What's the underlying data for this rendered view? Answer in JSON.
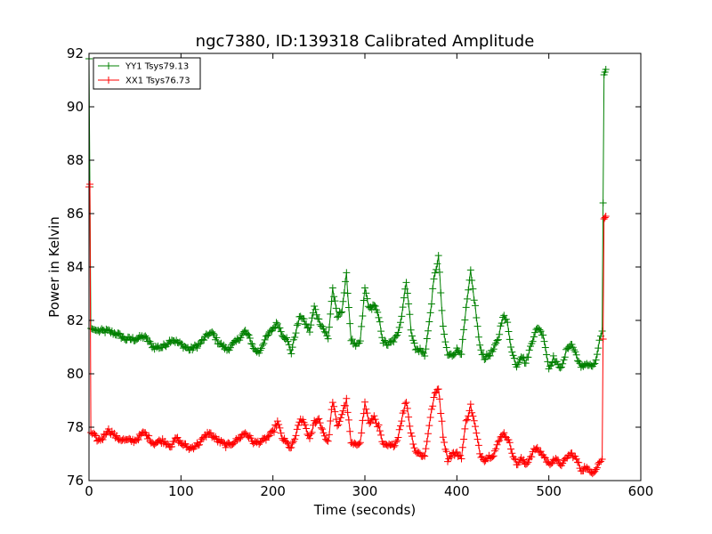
{
  "chart_data": {
    "type": "line",
    "title": "ngc7380, ID:139318 Calibrated Amplitude",
    "xlabel": "Time (seconds)",
    "ylabel": "Power in Kelvin",
    "xlim": [
      0,
      600
    ],
    "ylim": [
      76,
      92
    ],
    "xticks": [
      0,
      100,
      200,
      300,
      400,
      500,
      600
    ],
    "yticks": [
      76,
      78,
      80,
      82,
      84,
      86,
      88,
      90,
      92
    ],
    "legend_position": "upper-left",
    "series": [
      {
        "name": "YY1 Tsys79.13",
        "color": "#008000",
        "marker": "+",
        "baseline": [
          [
            0,
            91.8
          ],
          [
            1,
            87.0
          ],
          [
            2,
            81.7
          ],
          [
            10,
            81.6
          ],
          [
            20,
            81.6
          ],
          [
            30,
            81.5
          ],
          [
            40,
            81.3
          ],
          [
            50,
            81.3
          ],
          [
            60,
            81.4
          ],
          [
            70,
            81.0
          ],
          [
            80,
            81.0
          ],
          [
            90,
            81.3
          ],
          [
            100,
            81.1
          ],
          [
            110,
            80.9
          ],
          [
            120,
            81.1
          ],
          [
            130,
            81.5
          ],
          [
            135,
            81.5
          ],
          [
            140,
            81.2
          ],
          [
            150,
            80.9
          ],
          [
            160,
            81.2
          ],
          [
            170,
            81.6
          ],
          [
            175,
            81.3
          ],
          [
            180,
            80.9
          ],
          [
            185,
            80.8
          ],
          [
            190,
            81.2
          ],
          [
            200,
            81.7
          ],
          [
            205,
            81.9
          ],
          [
            210,
            81.5
          ],
          [
            215,
            81.3
          ],
          [
            220,
            80.8
          ],
          [
            225,
            81.6
          ],
          [
            230,
            82.2
          ],
          [
            235,
            81.9
          ],
          [
            240,
            81.6
          ],
          [
            245,
            82.5
          ],
          [
            250,
            82.0
          ],
          [
            255,
            81.7
          ],
          [
            260,
            81.3
          ],
          [
            265,
            83.2
          ],
          [
            270,
            82.1
          ],
          [
            275,
            82.4
          ],
          [
            280,
            83.7
          ],
          [
            285,
            81.3
          ],
          [
            290,
            81.0
          ],
          [
            295,
            81.2
          ],
          [
            300,
            83.2
          ],
          [
            305,
            82.4
          ],
          [
            310,
            82.6
          ],
          [
            315,
            82.1
          ],
          [
            320,
            81.2
          ],
          [
            325,
            81.1
          ],
          [
            330,
            81.2
          ],
          [
            335,
            81.4
          ],
          [
            340,
            82.2
          ],
          [
            345,
            83.5
          ],
          [
            350,
            81.7
          ],
          [
            355,
            80.9
          ],
          [
            360,
            80.9
          ],
          [
            365,
            80.7
          ],
          [
            370,
            81.9
          ],
          [
            375,
            83.5
          ],
          [
            380,
            84.4
          ],
          [
            385,
            81.7
          ],
          [
            390,
            80.7
          ],
          [
            395,
            80.7
          ],
          [
            400,
            80.9
          ],
          [
            405,
            80.8
          ],
          [
            410,
            82.4
          ],
          [
            415,
            83.8
          ],
          [
            420,
            82.5
          ],
          [
            425,
            81.0
          ],
          [
            430,
            80.6
          ],
          [
            435,
            80.7
          ],
          [
            440,
            80.9
          ],
          [
            445,
            81.3
          ],
          [
            450,
            82.2
          ],
          [
            455,
            81.9
          ],
          [
            460,
            80.8
          ],
          [
            465,
            80.3
          ],
          [
            470,
            80.7
          ],
          [
            475,
            80.4
          ],
          [
            480,
            81.0
          ],
          [
            485,
            81.6
          ],
          [
            490,
            81.7
          ],
          [
            495,
            81.3
          ],
          [
            500,
            80.2
          ],
          [
            505,
            80.6
          ],
          [
            510,
            80.3
          ],
          [
            515,
            80.3
          ],
          [
            520,
            81.0
          ],
          [
            525,
            81.1
          ],
          [
            530,
            80.7
          ],
          [
            535,
            80.2
          ],
          [
            540,
            80.4
          ],
          [
            545,
            80.3
          ],
          [
            550,
            80.3
          ],
          [
            555,
            81.2
          ],
          [
            558,
            81.6
          ],
          [
            560,
            91.2
          ],
          [
            562,
            91.4
          ]
        ],
        "tsys_shown": "79.13"
      },
      {
        "name": "XX1 Tsys76.73",
        "color": "#ff0000",
        "marker": "+",
        "baseline": [
          [
            0,
            87.0
          ],
          [
            1,
            87.1
          ],
          [
            2,
            77.8
          ],
          [
            5,
            77.7
          ],
          [
            10,
            77.5
          ],
          [
            15,
            77.6
          ],
          [
            20,
            77.9
          ],
          [
            25,
            77.8
          ],
          [
            30,
            77.6
          ],
          [
            40,
            77.5
          ],
          [
            50,
            77.5
          ],
          [
            60,
            77.8
          ],
          [
            70,
            77.4
          ],
          [
            80,
            77.5
          ],
          [
            90,
            77.3
          ],
          [
            95,
            77.6
          ],
          [
            100,
            77.4
          ],
          [
            110,
            77.2
          ],
          [
            120,
            77.4
          ],
          [
            130,
            77.8
          ],
          [
            140,
            77.5
          ],
          [
            150,
            77.3
          ],
          [
            160,
            77.5
          ],
          [
            170,
            77.8
          ],
          [
            180,
            77.4
          ],
          [
            190,
            77.5
          ],
          [
            200,
            77.8
          ],
          [
            205,
            78.2
          ],
          [
            210,
            77.6
          ],
          [
            215,
            77.4
          ],
          [
            220,
            77.2
          ],
          [
            225,
            77.7
          ],
          [
            230,
            78.3
          ],
          [
            235,
            78.1
          ],
          [
            240,
            77.5
          ],
          [
            245,
            78.2
          ],
          [
            250,
            78.3
          ],
          [
            255,
            77.8
          ],
          [
            260,
            77.4
          ],
          [
            265,
            79.0
          ],
          [
            270,
            78.0
          ],
          [
            275,
            78.5
          ],
          [
            280,
            79.0
          ],
          [
            285,
            77.4
          ],
          [
            290,
            77.3
          ],
          [
            295,
            77.5
          ],
          [
            300,
            78.9
          ],
          [
            305,
            78.1
          ],
          [
            310,
            78.4
          ],
          [
            315,
            78.0
          ],
          [
            320,
            77.3
          ],
          [
            325,
            77.3
          ],
          [
            330,
            77.3
          ],
          [
            335,
            77.5
          ],
          [
            340,
            78.3
          ],
          [
            345,
            79.0
          ],
          [
            350,
            77.8
          ],
          [
            355,
            77.1
          ],
          [
            360,
            77.0
          ],
          [
            365,
            76.9
          ],
          [
            370,
            78.1
          ],
          [
            375,
            79.1
          ],
          [
            380,
            79.5
          ],
          [
            385,
            77.7
          ],
          [
            390,
            76.8
          ],
          [
            395,
            77.0
          ],
          [
            400,
            77.0
          ],
          [
            405,
            76.9
          ],
          [
            410,
            78.2
          ],
          [
            415,
            78.8
          ],
          [
            420,
            78.0
          ],
          [
            425,
            77.0
          ],
          [
            430,
            76.8
          ],
          [
            435,
            76.9
          ],
          [
            440,
            77.0
          ],
          [
            445,
            77.4
          ],
          [
            450,
            77.8
          ],
          [
            455,
            77.6
          ],
          [
            460,
            77.1
          ],
          [
            465,
            76.6
          ],
          [
            470,
            76.8
          ],
          [
            475,
            76.6
          ],
          [
            480,
            76.9
          ],
          [
            485,
            77.2
          ],
          [
            490,
            77.1
          ],
          [
            495,
            76.9
          ],
          [
            500,
            76.6
          ],
          [
            505,
            76.8
          ],
          [
            510,
            76.7
          ],
          [
            515,
            76.6
          ],
          [
            520,
            76.9
          ],
          [
            525,
            77.0
          ],
          [
            530,
            76.8
          ],
          [
            535,
            76.4
          ],
          [
            540,
            76.5
          ],
          [
            545,
            76.3
          ],
          [
            550,
            76.4
          ],
          [
            555,
            76.7
          ],
          [
            558,
            76.8
          ],
          [
            560,
            85.8
          ],
          [
            562,
            85.9
          ]
        ],
        "tsys_shown": "76.73"
      }
    ]
  }
}
